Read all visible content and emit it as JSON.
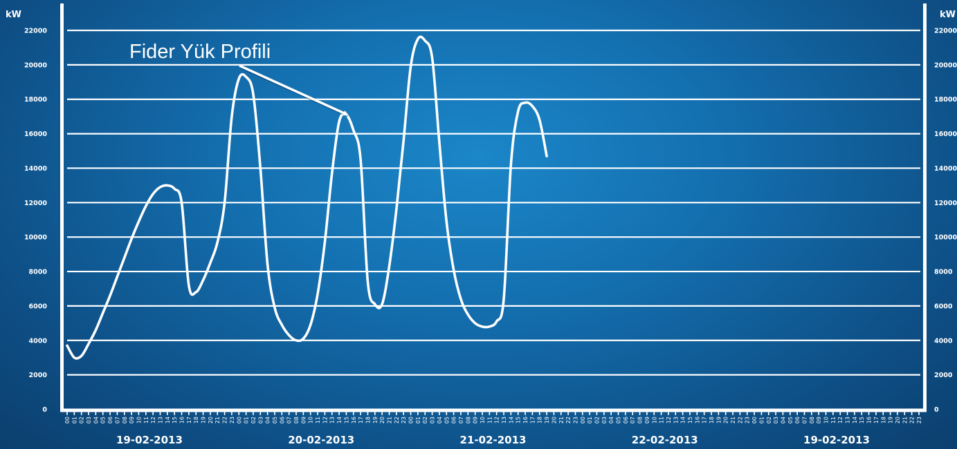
{
  "chart_data": {
    "type": "line",
    "title": "",
    "y_unit_left": "kW",
    "y_unit_right": "kW",
    "ylim": [
      0,
      22000
    ],
    "y_ticks": [
      0,
      2000,
      4000,
      6000,
      8000,
      10000,
      12000,
      14000,
      16000,
      18000,
      20000,
      22000
    ],
    "hour_labels": [
      "00",
      "01",
      "02",
      "03",
      "04",
      "05",
      "06",
      "07",
      "08",
      "09",
      "10",
      "11",
      "12",
      "13",
      "14",
      "15",
      "16",
      "17",
      "18",
      "19",
      "20",
      "21",
      "22",
      "23"
    ],
    "day_labels": [
      "19-02-2013",
      "20-02-2013",
      "21-02-2013",
      "22-02-2013",
      "19-02-2013"
    ],
    "annotation": "Fider Yük Profili",
    "grid": true,
    "series": [
      {
        "values": [
          3700,
          3000,
          3100,
          3800,
          4600,
          5600,
          6600,
          7700,
          8800,
          9900,
          10900,
          11800,
          12500,
          12900,
          13000,
          12800,
          12000,
          7200,
          6800,
          7500,
          8500,
          9700,
          12000,
          17000,
          19200,
          19300,
          18300,
          14000,
          8400,
          5900,
          4900,
          4300,
          4000,
          4100,
          4900,
          6700,
          9700,
          13700,
          16700,
          17100,
          16200,
          14500,
          7400,
          6100,
          6100,
          8300,
          11600,
          15600,
          19900,
          21500,
          21400,
          20400,
          15500,
          10900,
          8100,
          6400,
          5500,
          5000,
          4800,
          4800,
          5100,
          6400,
          14200,
          17300,
          17800,
          17600,
          16800,
          14700
        ]
      }
    ]
  }
}
